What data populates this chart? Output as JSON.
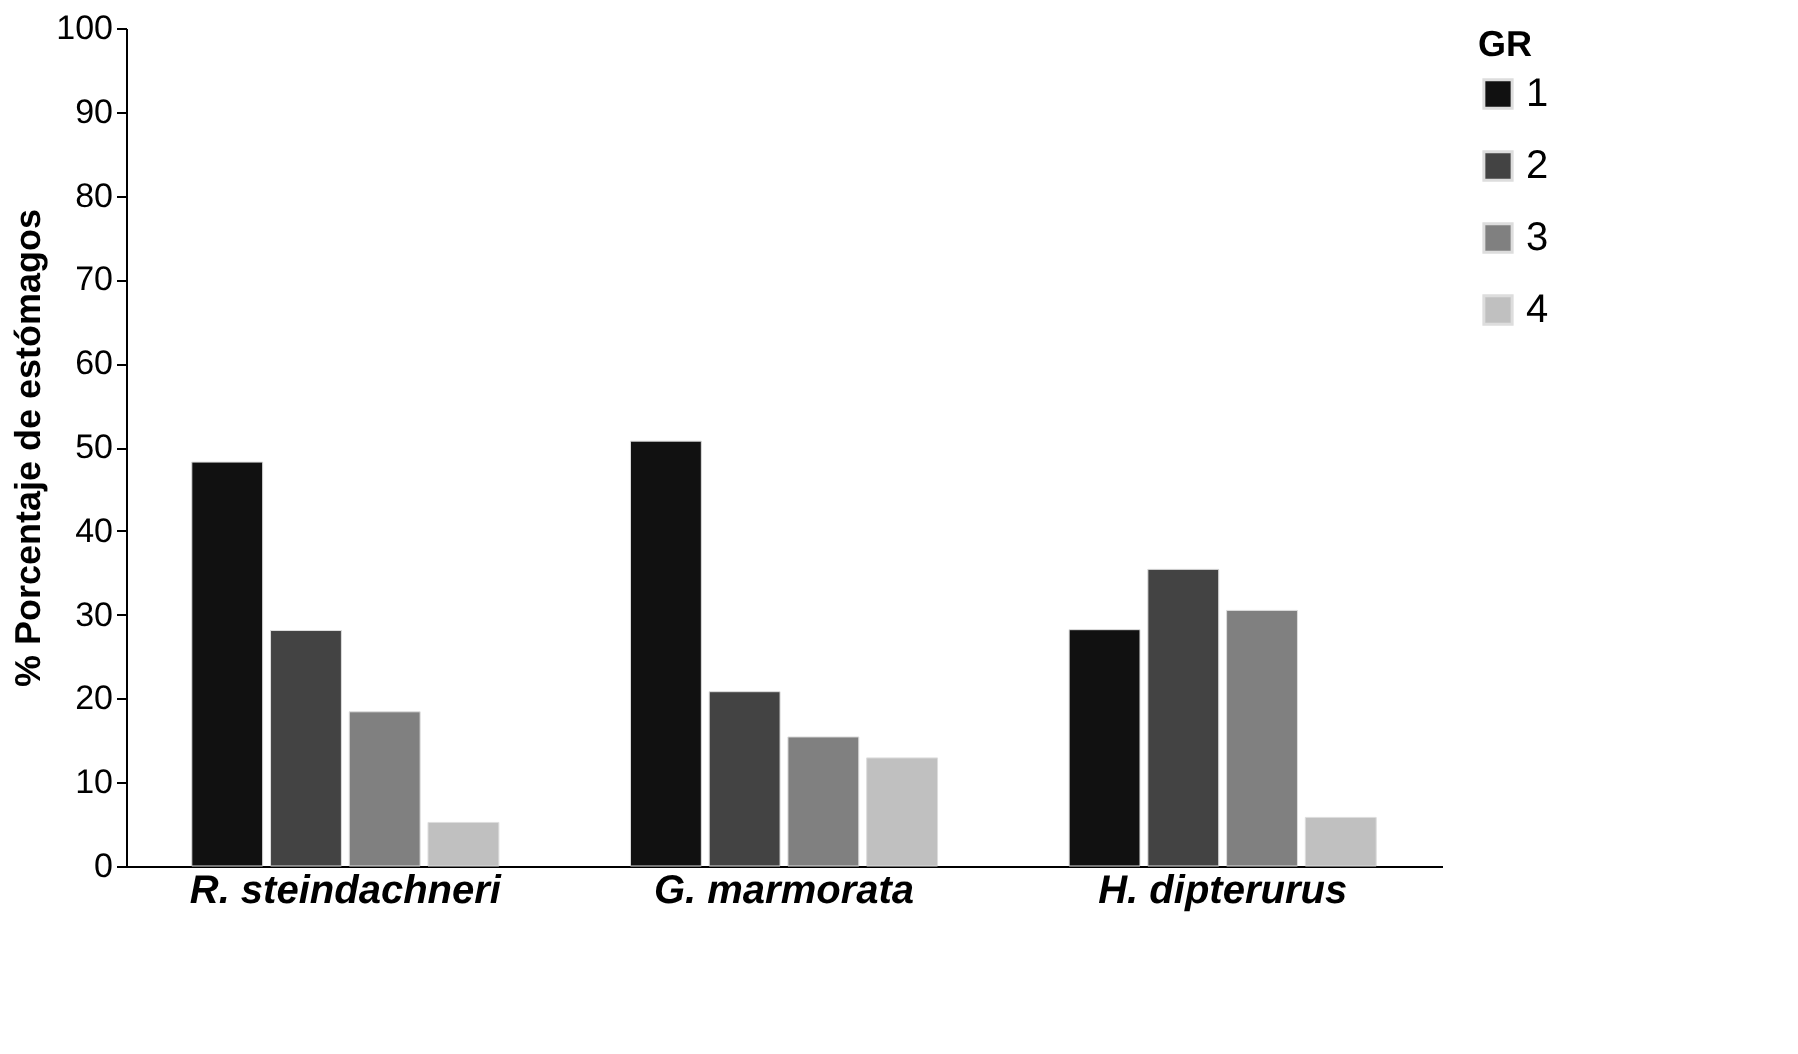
{
  "chart_data": {
    "type": "bar",
    "ylabel": "% Porcentaje de estómagos",
    "legend_title": "GR",
    "categories": [
      "R. steindachneri",
      "G. marmorata",
      "H. dipterurus"
    ],
    "series": [
      {
        "name": "1",
        "color": "#111111",
        "values": [
          48.2,
          50.7,
          28.2
        ]
      },
      {
        "name": "2",
        "color": "#434343",
        "values": [
          28.1,
          20.8,
          35.4
        ]
      },
      {
        "name": "3",
        "color": "#808080",
        "values": [
          18.4,
          15.4,
          30.5
        ]
      },
      {
        "name": "4",
        "color": "#c0c0c0",
        "values": [
          5.2,
          12.9,
          5.8
        ]
      }
    ],
    "ylim": [
      0,
      100
    ],
    "yticks": [
      0,
      10,
      20,
      30,
      40,
      50,
      60,
      70,
      80,
      90,
      100
    ],
    "grid": false,
    "legend": "right"
  }
}
